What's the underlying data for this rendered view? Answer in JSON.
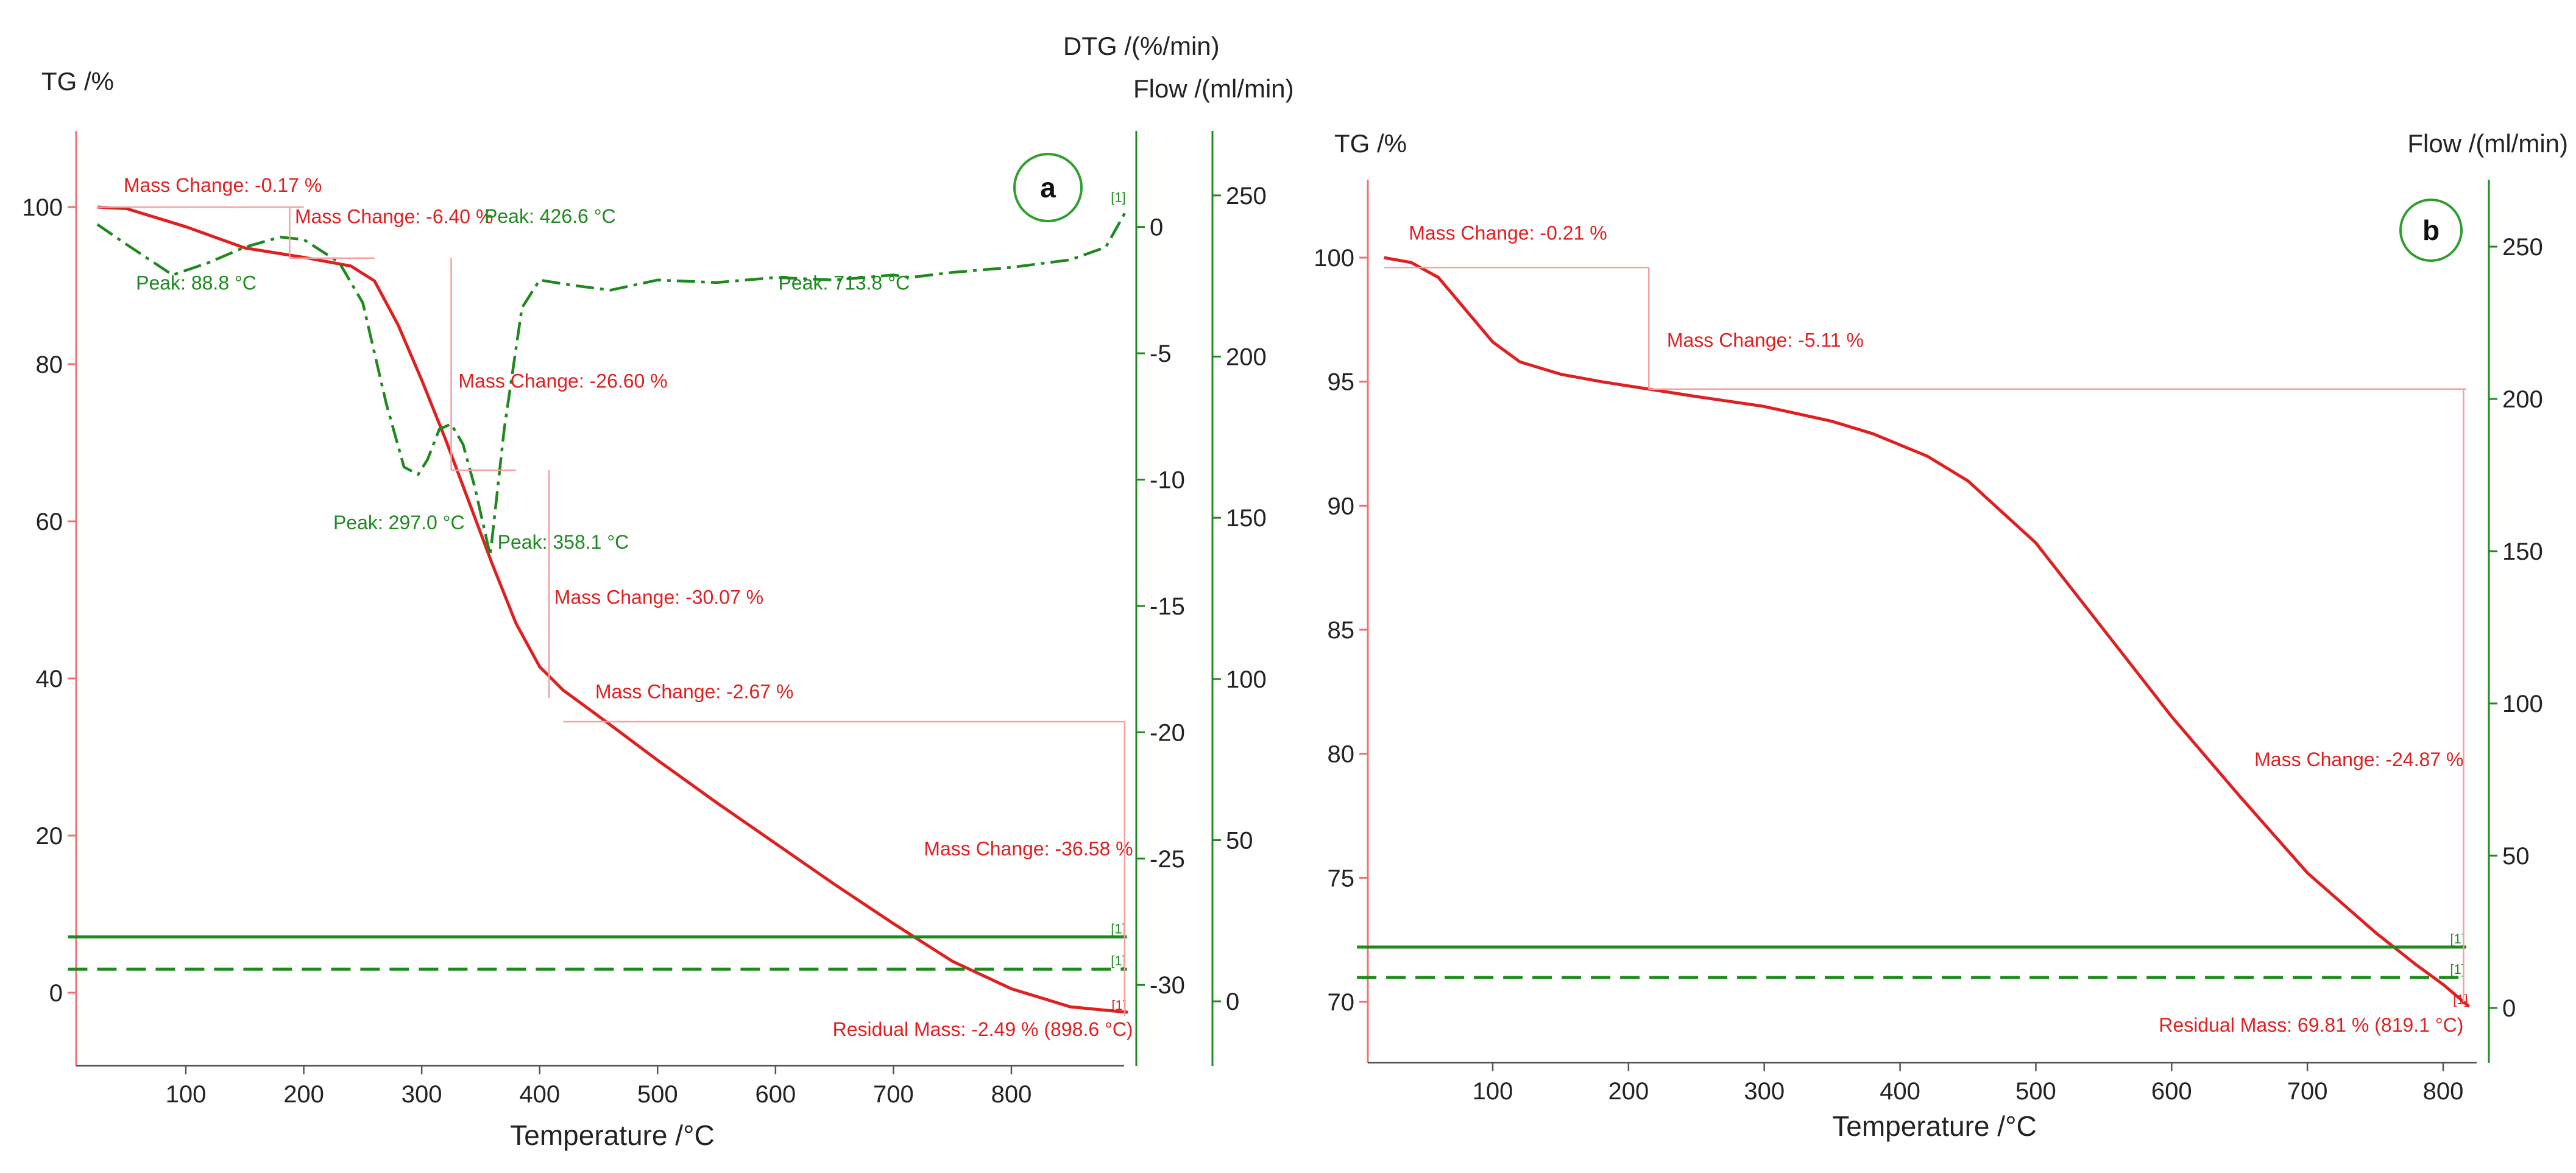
{
  "colors": {
    "tg": "#e02020",
    "dtg": "#1e8a1e",
    "flow": "#1e8a1e",
    "axis_left": "#f07070",
    "axis_right": "#1e8a1e",
    "annotation": "#e02020",
    "guide": "#f4a0a0",
    "text": "#222222",
    "circle": "#2e9e2e"
  },
  "chart_data": [
    {
      "type": "line",
      "panel_label": "a",
      "xlabel": "Temperature /°C",
      "left_axis_label": "TG /%",
      "right_axis_label_1": "DTG /(%/min)",
      "right_axis_label_2": "Flow /(ml/min)",
      "xlim": [
        0,
        910
      ],
      "x_ticks": [
        100,
        200,
        300,
        400,
        500,
        600,
        700,
        800
      ],
      "tg_ylim": [
        -10,
        107
      ],
      "tg_ticks": [
        0,
        20,
        40,
        60,
        80,
        100
      ],
      "dtg_ylim": [
        -33.2,
        3.8
      ],
      "dtg_ticks": [
        -30,
        -25,
        -20,
        -15,
        -10,
        -5,
        0
      ],
      "flow_ylim": [
        -20,
        270
      ],
      "flow_ticks": [
        0,
        50,
        100,
        150,
        200,
        250
      ],
      "series": [
        {
          "name": "TG",
          "axis": "tg",
          "style": "solid",
          "x": [
            25,
            50,
            100,
            150,
            200,
            240,
            260,
            280,
            300,
            320,
            340,
            360,
            380,
            400,
            420,
            450,
            500,
            550,
            600,
            650,
            700,
            750,
            800,
            850,
            898.6
          ],
          "y": [
            100,
            99.8,
            97.5,
            94.8,
            93.6,
            92.5,
            90.6,
            85.0,
            78.0,
            70.5,
            62.5,
            54.5,
            47.0,
            41.5,
            38.5,
            35.2,
            29.6,
            24.2,
            19.0,
            13.8,
            8.8,
            4.0,
            0.5,
            -1.8,
            -2.49
          ]
        },
        {
          "name": "DTG",
          "axis": "dtg",
          "style": "dashdot",
          "x": [
            25,
            50,
            88.8,
            120,
            150,
            180,
            200,
            230,
            250,
            270,
            285,
            297,
            305,
            315,
            325,
            335,
            345,
            358.1,
            370,
            385,
            400,
            426.6,
            460,
            500,
            550,
            600,
            650,
            700,
            713.8,
            750,
            800,
            850,
            880,
            898
          ],
          "y": [
            0.1,
            -0.7,
            -1.9,
            -1.4,
            -0.8,
            -0.4,
            -0.5,
            -1.4,
            -3.0,
            -7.0,
            -9.5,
            -9.8,
            -9.2,
            -8.0,
            -7.8,
            -8.6,
            -10.3,
            -13.0,
            -8.0,
            -3.2,
            -2.1,
            -2.3,
            -2.5,
            -2.1,
            -2.2,
            -2.0,
            -2.1,
            -1.9,
            -2.0,
            -1.8,
            -1.6,
            -1.3,
            -0.8,
            0.7
          ]
        },
        {
          "name": "Flow 1",
          "axis": "flow",
          "style": "solid",
          "x": [
            0,
            898
          ],
          "y": [
            20,
            20
          ]
        },
        {
          "name": "Flow 2",
          "axis": "flow",
          "style": "dashed",
          "x": [
            0,
            898
          ],
          "y": [
            10,
            10
          ]
        }
      ],
      "annotations": [
        {
          "text": "Mass Change: -0.17 %",
          "kind": "mass",
          "x": 25,
          "y": 100.5,
          "anchor": "start",
          "dx": 0.025,
          "dy": -0.012
        },
        {
          "text": "Mass Change: -6.40 %",
          "kind": "mass",
          "x": 188,
          "y": 97,
          "anchor": "start",
          "dx": 0.005,
          "dy": -0.008
        },
        {
          "text": "Peak: 426.6 °C",
          "kind": "peak",
          "x": 426.6,
          "y": 98,
          "anchor": "middle",
          "dx": -0.02,
          "dy": 0
        },
        {
          "text": "Peak: 88.8 °C",
          "kind": "peak",
          "x": 88.8,
          "y": 89.5,
          "anchor": "start",
          "dx": -0.035,
          "dy": 0
        },
        {
          "text": "Peak: 713.8 °C",
          "kind": "peak",
          "x": 713.8,
          "y": 89.5,
          "anchor": "end",
          "dx": 0,
          "dy": 0
        },
        {
          "text": "Mass Change: -26.60 %",
          "kind": "mass",
          "x": 380,
          "y": 77,
          "anchor": "start",
          "dx": -0.055,
          "dy": 0
        },
        {
          "text": "Peak: 297.0 °C",
          "kind": "peak",
          "x": 225,
          "y": 59,
          "anchor": "start",
          "dx": 0,
          "dy": 0
        },
        {
          "text": "Peak: 358.1 °C",
          "kind": "peak",
          "x": 358.1,
          "y": 56.5,
          "anchor": "start",
          "dx": 0.007,
          "dy": 0
        },
        {
          "text": "Mass Change: -30.07 %",
          "kind": "mass",
          "x": 408,
          "y": 49.5,
          "anchor": "start",
          "dx": 0.005,
          "dy": 0
        },
        {
          "text": "Mass Change: -2.67 %",
          "kind": "mass",
          "x": 440,
          "y": 37.5,
          "anchor": "start",
          "dx": 0.008,
          "dy": 0
        },
        {
          "text": "Mass Change: -36.58 %",
          "kind": "mass",
          "x": 896,
          "y": 17.5,
          "anchor": "end",
          "dx": 0.008,
          "dy": 0
        },
        {
          "text": "Residual Mass: -2.49 % (898.6 °C)",
          "kind": "mass",
          "x": 896,
          "y": -5.5,
          "anchor": "end",
          "dx": 0.008,
          "dy": 0
        }
      ],
      "flow_markers": [
        "[1]",
        "[1]",
        "[1]"
      ],
      "dtg_end_marker": "[1]"
    },
    {
      "type": "line",
      "panel_label": "b",
      "xlabel": "Temperature /°C",
      "left_axis_label": "TG /%",
      "right_axis_label_2": "Flow /(ml/min)",
      "xlim": [
        0,
        828
      ],
      "x_ticks": [
        100,
        200,
        300,
        400,
        500,
        600,
        700,
        800
      ],
      "tg_ylim": [
        68,
        102
      ],
      "tg_ticks": [
        70,
        75,
        80,
        85,
        90,
        95,
        100
      ],
      "flow_ylim": [
        -18,
        272
      ],
      "flow_ticks": [
        0,
        50,
        100,
        150,
        200,
        250
      ],
      "series": [
        {
          "name": "TG",
          "axis": "tg",
          "style": "solid",
          "x": [
            20,
            40,
            60,
            80,
            100,
            120,
            150,
            180,
            215,
            250,
            300,
            350,
            380,
            420,
            450,
            500,
            550,
            600,
            650,
            700,
            750,
            780,
            800,
            819.1
          ],
          "y": [
            100,
            99.8,
            99.2,
            97.9,
            96.6,
            95.8,
            95.3,
            95.0,
            94.7,
            94.4,
            94.0,
            93.4,
            92.9,
            92.0,
            91.0,
            88.5,
            85.0,
            81.5,
            78.3,
            75.2,
            72.8,
            71.5,
            70.7,
            69.81
          ]
        },
        {
          "name": "Flow 1",
          "axis": "flow",
          "style": "solid",
          "x": [
            0,
            817
          ],
          "y": [
            20,
            20
          ]
        },
        {
          "name": "Flow 2",
          "axis": "flow",
          "style": "dashed",
          "x": [
            0,
            817
          ],
          "y": [
            10,
            10
          ]
        }
      ],
      "annotations": [
        {
          "text": "Mass Change: -0.21 %",
          "kind": "mass",
          "x": 30,
          "y": 100.3,
          "anchor": "start",
          "dx": 0.01,
          "dy": -0.012
        },
        {
          "text": "Mass Change: -5.11 %",
          "kind": "mass",
          "x": 225,
          "y": 96.4,
          "anchor": "start",
          "dx": 0.004,
          "dy": 0
        },
        {
          "text": "Mass Change: -24.87 %",
          "kind": "mass",
          "x": 815,
          "y": 79.5,
          "anchor": "end",
          "dx": 0,
          "dy": 0
        },
        {
          "text": "Residual Mass: 69.81 % (819.1 °C)",
          "kind": "mass",
          "x": 815,
          "y": 68.8,
          "anchor": "end",
          "dx": 0,
          "dy": 0
        }
      ],
      "flow_markers": [
        "[1]",
        "[1]",
        "[1]"
      ]
    }
  ]
}
